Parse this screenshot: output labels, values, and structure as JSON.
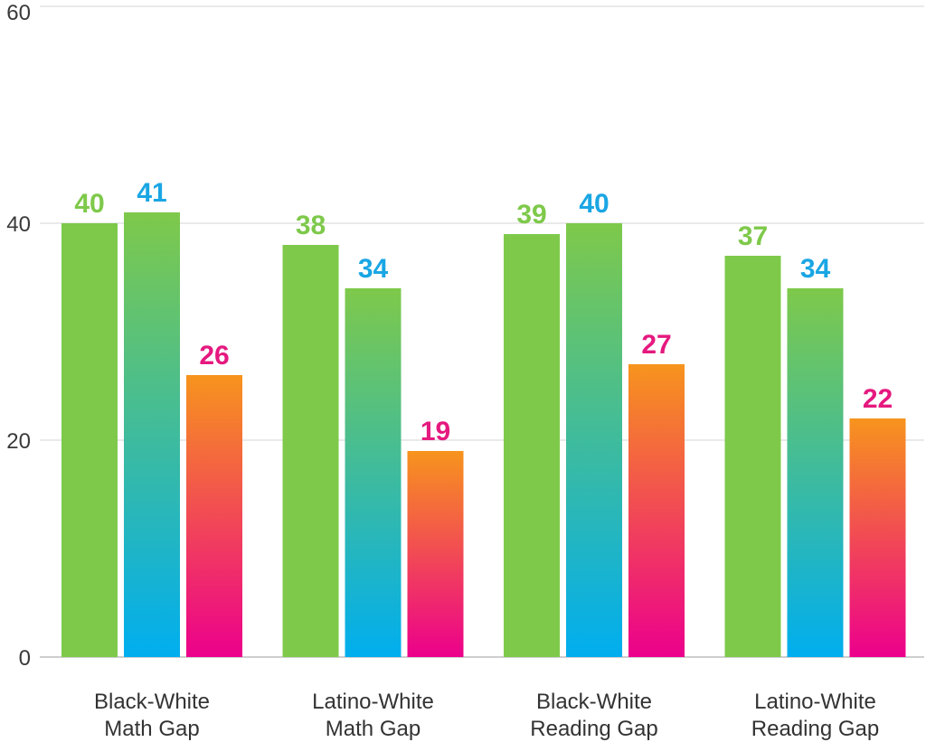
{
  "chart_data": {
    "type": "bar",
    "categories": [
      [
        "Black-White",
        "Math Gap"
      ],
      [
        "Latino-White",
        "Math Gap"
      ],
      [
        "Black-White",
        "Reading Gap"
      ],
      [
        "Latino-White",
        "Reading Gap"
      ]
    ],
    "series": [
      {
        "values": [
          40,
          38,
          39,
          37
        ],
        "color": "#7ec94a",
        "label_color": "#7ec94a"
      },
      {
        "values": [
          41,
          34,
          40,
          34
        ],
        "gradient": [
          "#7ec94a",
          "#00aeef"
        ],
        "label_color": "#1aa6e4"
      },
      {
        "values": [
          26,
          19,
          27,
          22
        ],
        "gradient": [
          "#f7941d",
          "#ec008c"
        ],
        "label_color": "#e5197f"
      }
    ],
    "ylim": [
      0,
      60
    ],
    "yticks": [
      0,
      20,
      40,
      60
    ],
    "grid": true,
    "title": "",
    "xlabel": "",
    "ylabel": ""
  }
}
